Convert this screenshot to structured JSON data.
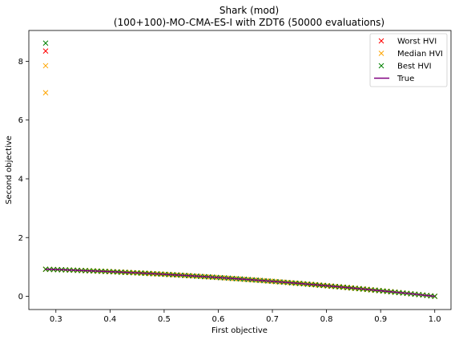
{
  "chart_data": {
    "type": "scatter",
    "title": "Shark (mod)",
    "subtitle": "(100+100)-MO-CMA-ES-I with ZDT6 (50000 evaluations)",
    "xlabel": "First objective",
    "ylabel": "Second objective",
    "xlim": [
      0.25,
      1.03
    ],
    "ylim": [
      -0.45,
      9.05
    ],
    "xticks": [
      0.3,
      0.4,
      0.5,
      0.6,
      0.7,
      0.8,
      0.9,
      1.0
    ],
    "xtick_labels": [
      "0.3",
      "0.4",
      "0.5",
      "0.6",
      "0.7",
      "0.8",
      "0.9",
      "1.0"
    ],
    "yticks": [
      0,
      2,
      4,
      6,
      8
    ],
    "ytick_labels": [
      "0",
      "2",
      "4",
      "6",
      "8"
    ],
    "legend_position": "top-right",
    "grid": false,
    "series": [
      {
        "name": "Worst HVI",
        "marker": "x",
        "color": "#ff0000",
        "outliers": [
          {
            "x": 0.281,
            "y": 8.35
          }
        ],
        "front_x_range": [
          0.281,
          1.0
        ],
        "front_count": 99
      },
      {
        "name": "Median HVI",
        "marker": "x",
        "color": "#ffa500",
        "outliers": [
          {
            "x": 0.281,
            "y": 7.85
          },
          {
            "x": 0.281,
            "y": 6.93
          }
        ],
        "front_x_range": [
          0.281,
          1.0
        ],
        "front_count": 98
      },
      {
        "name": "Best HVI",
        "marker": "x",
        "color": "#008000",
        "outliers": [
          {
            "x": 0.281,
            "y": 8.62
          }
        ],
        "front_x_range": [
          0.281,
          1.0
        ],
        "front_count": 99
      },
      {
        "name": "True",
        "marker": "line",
        "color": "#800080",
        "x_range": [
          0.281,
          1.0
        ],
        "formula": "y = 1 - x^2"
      }
    ]
  }
}
